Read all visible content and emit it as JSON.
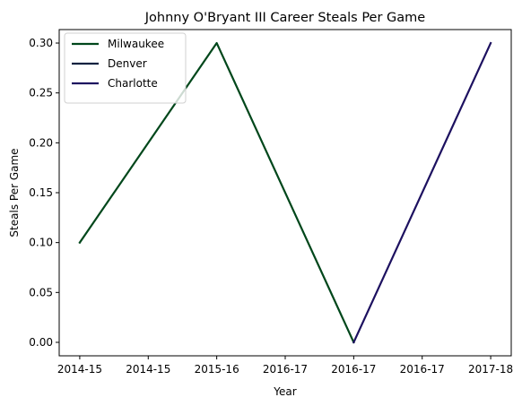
{
  "chart_data": {
    "type": "line",
    "title": "Johnny O'Bryant III Career Steals Per Game",
    "xlabel": "Year",
    "ylabel": "Steals Per Game",
    "x_tick_labels": [
      "2014-15",
      "2014-15",
      "2015-16",
      "2016-17",
      "2016-17",
      "2016-17",
      "2017-18"
    ],
    "y_ticks": [
      "0.00",
      "0.05",
      "0.10",
      "0.15",
      "0.20",
      "0.25",
      "0.30"
    ],
    "ylim": [
      -0.0135,
      0.3135
    ],
    "xlim": [
      -0.15,
      3.15
    ],
    "grid": false,
    "legend_position": "upper left",
    "series": [
      {
        "name": "Milwaukee",
        "color": "#00471B",
        "points": [
          {
            "x": "2014-15",
            "y": 0.1
          },
          {
            "x": "2015-16",
            "y": 0.3
          },
          {
            "x": "2016-17",
            "y": 0.0
          }
        ]
      },
      {
        "name": "Denver",
        "color": "#0E2240",
        "points": [
          {
            "x": "2016-17",
            "y": 0.0
          }
        ]
      },
      {
        "name": "Charlotte",
        "color": "#1D1160",
        "points": [
          {
            "x": "2016-17",
            "y": 0.0
          },
          {
            "x": "2017-18",
            "y": 0.3
          }
        ]
      }
    ]
  }
}
